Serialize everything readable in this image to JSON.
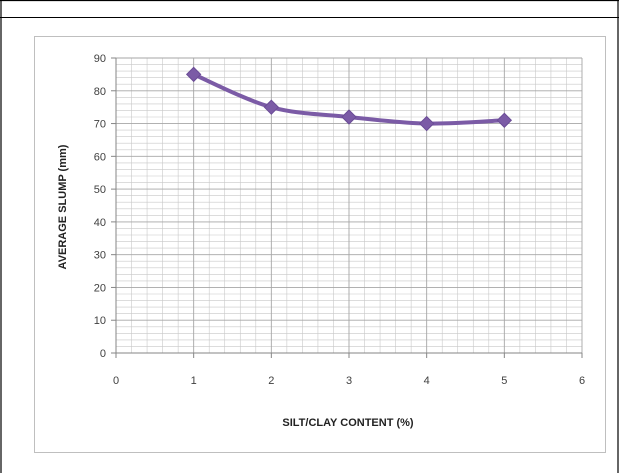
{
  "colors": {
    "series": "#7B5BA6",
    "grid": "#C8C8C8",
    "axis": "#868686",
    "frame": "#000000",
    "chart_border": "#BFBFBF"
  },
  "chart_data": {
    "type": "line",
    "title": "",
    "xlabel": "SILT/CLAY CONTENT (%)",
    "ylabel": "AVERAGE SLUMP (mm)",
    "xlim": [
      0,
      6
    ],
    "ylim": [
      0,
      90
    ],
    "x_ticks": [
      0,
      1,
      2,
      3,
      4,
      5,
      6
    ],
    "y_ticks": [
      0,
      10,
      20,
      30,
      40,
      50,
      60,
      70,
      80,
      90
    ],
    "x_minor_step": 0.2,
    "y_minor_step": 2,
    "grid": true,
    "legend": "none",
    "marker": "diamond",
    "series": [
      {
        "x": [
          1,
          2,
          3,
          4,
          5
        ],
        "y": [
          85,
          75,
          72,
          70,
          71
        ]
      }
    ]
  }
}
